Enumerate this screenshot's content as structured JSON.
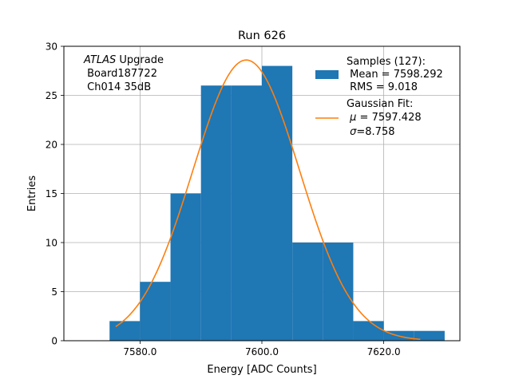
{
  "chart_data": {
    "type": "bar",
    "title": "Run 626",
    "xlabel": "Energy [ADC Counts]",
    "ylabel": "Entries",
    "xlim": [
      7567.5,
      7632.5
    ],
    "ylim": [
      0,
      30
    ],
    "grid": true,
    "x_ticks": [
      7580.0,
      7600.0,
      7620.0
    ],
    "x_tick_labels": [
      "7580.0",
      "7600.0",
      "7620.0"
    ],
    "y_ticks": [
      0,
      5,
      10,
      15,
      20,
      25,
      30
    ],
    "y_tick_labels": [
      "0",
      "5",
      "10",
      "15",
      "20",
      "25",
      "30"
    ],
    "histogram": {
      "bin_edges": [
        7575,
        7580,
        7585,
        7590,
        7595,
        7600,
        7605,
        7610,
        7615,
        7620,
        7625,
        7630
      ],
      "counts": [
        2,
        6,
        15,
        26,
        26,
        28,
        10,
        10,
        2,
        1,
        1
      ],
      "color": "#1f77b4"
    },
    "gaussian_fit": {
      "mu": 7597.428,
      "sigma": 8.758,
      "amplitude": 28.6,
      "x_range": [
        7576,
        7626
      ],
      "color": "#ff7f0e"
    },
    "annotation": {
      "italic": "ATLAS",
      "line1_rest": " Upgrade",
      "line2": " Board187722",
      "line3": " Ch014 35dB"
    },
    "legend": {
      "position": "top-right",
      "samples_lines": [
        "Samples (127):",
        " Mean = 7598.292",
        " RMS = 9.018"
      ],
      "fit_line1": "Gaussian Fit:",
      "fit_mu_sym": "μ",
      "fit_mu_rest": " = 7597.428",
      "fit_sigma_sym": "σ",
      "fit_sigma_rest": "=8.758"
    }
  }
}
